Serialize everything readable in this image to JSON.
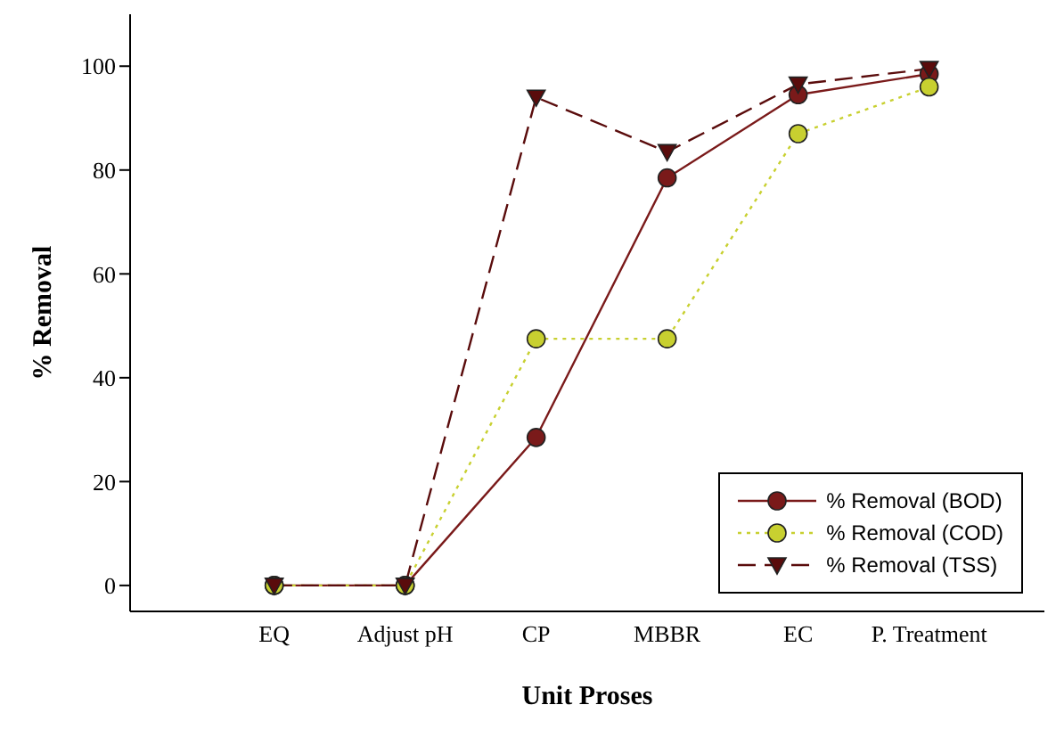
{
  "chart_data": {
    "type": "line",
    "xlabel": "Unit Proses",
    "ylabel": "% Removal",
    "categories": [
      "EQ",
      "Adjust pH",
      "CP",
      "MBBR",
      "EC",
      "P. Treatment"
    ],
    "series": [
      {
        "name": "% Removal (BOD)",
        "color": "#7a1a1a",
        "values": [
          0,
          0,
          28.5,
          78.5,
          94.5,
          98.5
        ],
        "marker": "circle",
        "line_style": "solid"
      },
      {
        "name": "% Removal (COD)",
        "color": "#c8d030",
        "values": [
          0,
          0,
          47.5,
          47.5,
          87,
          96
        ],
        "marker": "circle",
        "line_style": "dotted"
      },
      {
        "name": "% Removal (TSS)",
        "color": "#5a0c0c",
        "values": [
          0,
          0,
          94,
          83.5,
          96.5,
          99.5
        ],
        "marker": "triangle",
        "line_style": "dashed"
      }
    ],
    "ylim": [
      -5,
      110
    ],
    "yticks": [
      0,
      20,
      40,
      60,
      80,
      100
    ],
    "legend": "bottom right"
  }
}
